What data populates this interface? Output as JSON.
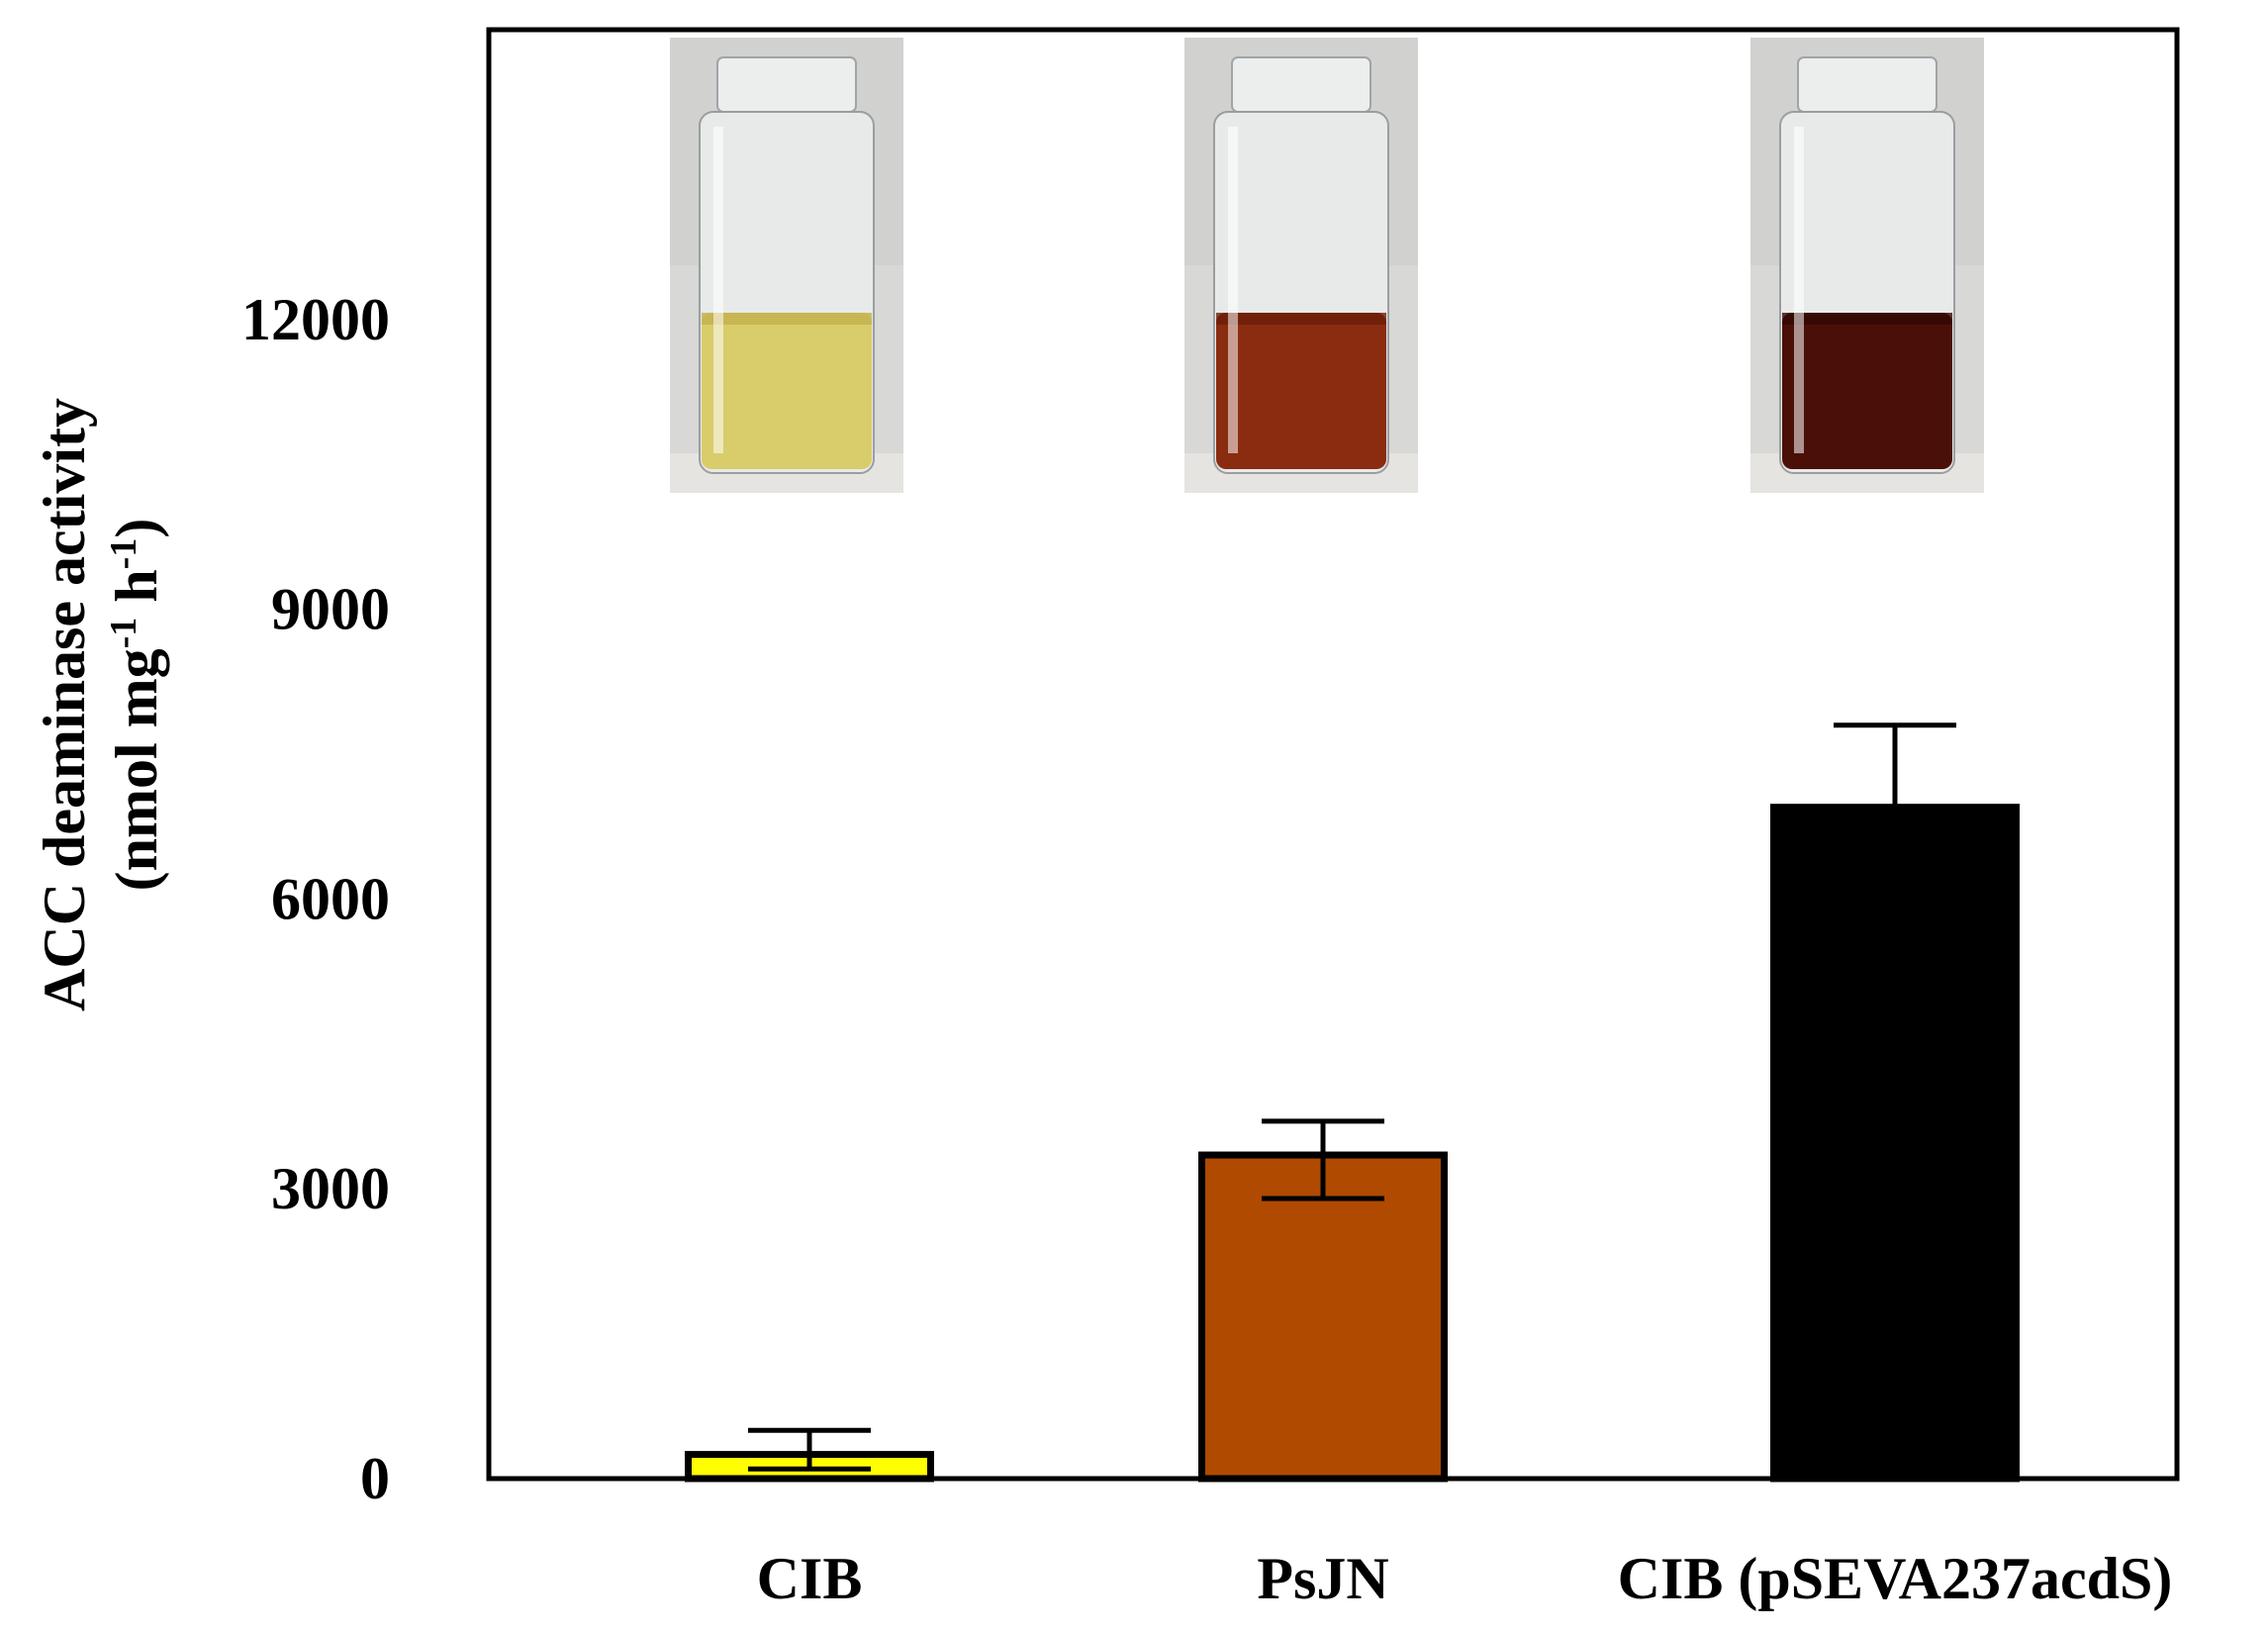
{
  "chart_data": {
    "type": "bar",
    "title": "",
    "xlabel": "",
    "ylabel": [
      "ACC deaminase activity",
      "(nmol mg",
      "-1",
      " h",
      "-1",
      ")"
    ],
    "ylim": [
      0,
      15000
    ],
    "yticks": [
      0,
      3000,
      6000,
      9000,
      12000
    ],
    "ytick_labels": [
      "0",
      "3000",
      "6000",
      "9000",
      "12000"
    ],
    "grid": false,
    "legend": "none",
    "categories": [
      "CIB",
      "PsJN",
      "CIB (pSEVA237acdS)"
    ],
    "values": [
      250,
      3350,
      6950
    ],
    "errors": [
      [
        100,
        500
      ],
      [
        2900,
        3700
      ],
      [
        5850,
        7800
      ]
    ],
    "colors": [
      "#ffff00",
      "#b04a00",
      "#000000"
    ]
  },
  "vial_photos": [
    {
      "label": "CIB vial photo",
      "liquid_color": "#d9cc6a",
      "liquid_shadow": "#c2b04c"
    },
    {
      "label": "PsJN vial photo",
      "liquid_color": "#8a2c10",
      "liquid_shadow": "#6a1e08"
    },
    {
      "label": "CIB (pSEVA237acdS) vial photo",
      "liquid_color": "#4a1008",
      "liquid_shadow": "#320804"
    }
  ]
}
